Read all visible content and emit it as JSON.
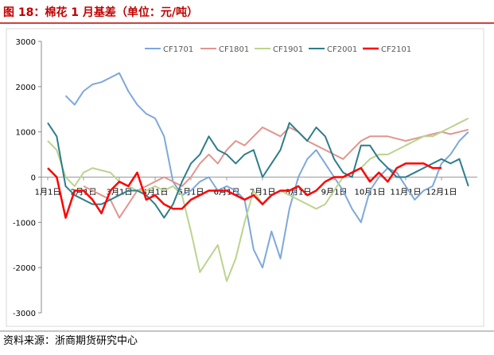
{
  "chart_data": {
    "type": "line",
    "title": "图 18：棉花 1 月基差（单位：元/吨）",
    "source": "资料来源：浙商期货研究中心",
    "categories": [
      "1月1日",
      null,
      null,
      null,
      "2月1日",
      null,
      null,
      null,
      "3月1日",
      null,
      null,
      null,
      "4月1日",
      null,
      null,
      null,
      "5月1日",
      null,
      null,
      null,
      "6月1日",
      null,
      null,
      null,
      "7月1日",
      null,
      null,
      null,
      "8月1日",
      null,
      null,
      null,
      "9月1日",
      null,
      null,
      null,
      "10月1日",
      null,
      null,
      null,
      "11月1日",
      null,
      null,
      null,
      "12月1日",
      null,
      null,
      null
    ],
    "series": [
      {
        "name": "CF1701",
        "color": "#7ea8db",
        "values": [
          null,
          null,
          1800,
          1600,
          1900,
          2050,
          2100,
          2200,
          2300,
          1900,
          1600,
          1400,
          1300,
          900,
          -100,
          -400,
          -300,
          -100,
          0,
          -300,
          -200,
          -300,
          -500,
          -1600,
          -2000,
          -1200,
          -1800,
          -700,
          0,
          400,
          600,
          300,
          0,
          -300,
          -700,
          -1000,
          -300,
          0,
          200,
          100,
          -200,
          -500,
          -300,
          -200,
          300,
          500,
          800,
          1000
        ]
      },
      {
        "name": "CF1801",
        "color": "#e0968f",
        "values": [
          null,
          null,
          null,
          null,
          -200,
          -300,
          -400,
          -500,
          -900,
          -600,
          -300,
          -200,
          -100,
          0,
          -100,
          -200,
          0,
          300,
          500,
          300,
          600,
          800,
          700,
          900,
          1100,
          1000,
          900,
          1100,
          1000,
          800,
          700,
          600,
          500,
          400,
          600,
          800,
          900,
          900,
          900,
          850,
          800,
          850,
          900,
          950,
          1000,
          950,
          1000,
          1050
        ]
      },
      {
        "name": "CF1901",
        "color": "#bad48e",
        "values": [
          800,
          600,
          0,
          -200,
          100,
          200,
          150,
          100,
          -100,
          -200,
          -300,
          -300,
          -200,
          -300,
          -200,
          -400,
          -1200,
          -2100,
          -1800,
          -1500,
          -2300,
          -1800,
          -1000,
          -300,
          -600,
          -400,
          -300,
          -400,
          -500,
          -600,
          -700,
          -600,
          -300,
          0,
          100,
          200,
          400,
          500,
          500,
          600,
          700,
          800,
          900,
          900,
          1000,
          1100,
          1200,
          1300
        ]
      },
      {
        "name": "CF2001",
        "color": "#2e7d8a",
        "values": [
          1200,
          900,
          -200,
          -400,
          -500,
          -600,
          -600,
          -500,
          -400,
          -300,
          -300,
          -400,
          -600,
          -900,
          -600,
          -100,
          300,
          500,
          900,
          600,
          500,
          300,
          500,
          600,
          0,
          300,
          600,
          1200,
          1000,
          800,
          1100,
          900,
          400,
          100,
          0,
          700,
          700,
          400,
          200,
          0,
          0,
          100,
          200,
          300,
          400,
          300,
          400,
          -200
        ]
      },
      {
        "name": "CF2101",
        "color": "#ff0000",
        "values": [
          200,
          0,
          -900,
          -300,
          -300,
          -500,
          -800,
          -300,
          -100,
          -200,
          100,
          -500,
          -400,
          -600,
          -700,
          -700,
          -500,
          -400,
          -300,
          -300,
          -300,
          -400,
          -500,
          -400,
          -600,
          -400,
          -300,
          -300,
          -200,
          -400,
          -300,
          -100,
          0,
          0,
          100,
          200,
          -100,
          100,
          -100,
          200,
          300,
          300,
          300,
          200,
          200,
          null,
          null,
          null
        ]
      }
    ],
    "ylim": [
      -3000,
      3000
    ],
    "yticks": [
      3000,
      2000,
      1000,
      0,
      -1000,
      -2000,
      -3000
    ],
    "legend": "top"
  }
}
